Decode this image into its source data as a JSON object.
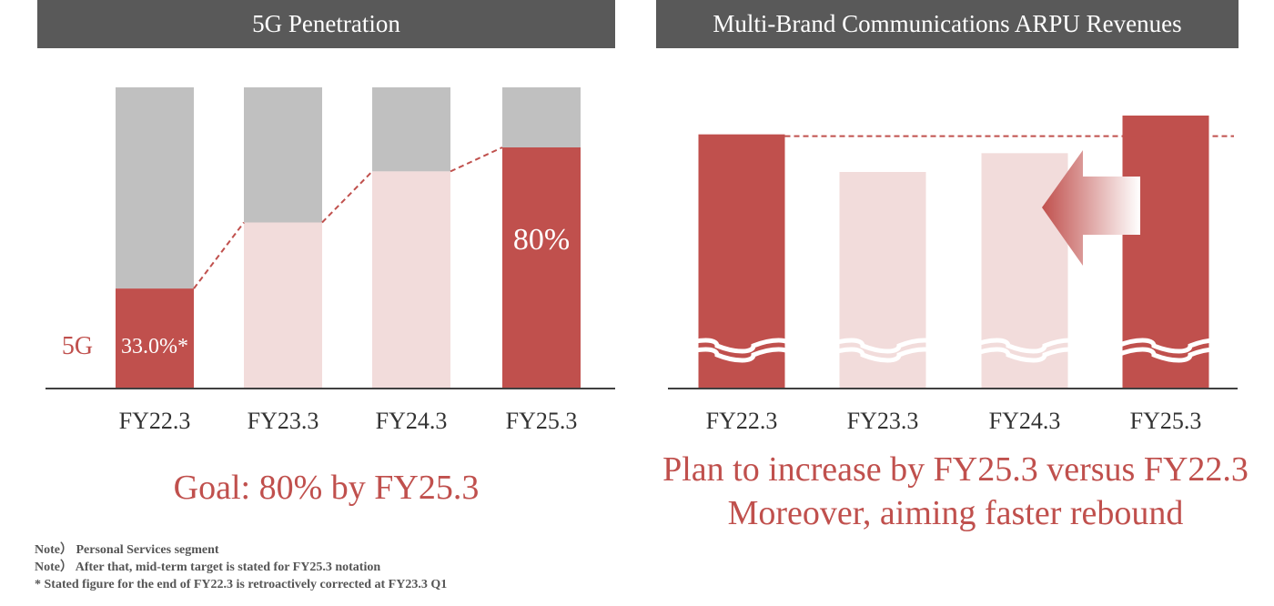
{
  "chart_data": [
    {
      "type": "bar",
      "title": "5G Penetration",
      "categories": [
        "FY22.3",
        "FY23.3",
        "FY24.3",
        "FY25.3"
      ],
      "series": [
        {
          "name": "5G",
          "values": [
            33.0,
            55,
            72,
            80
          ]
        }
      ],
      "total": 100,
      "ylim": [
        0,
        100
      ],
      "labels": [
        {
          "category": "FY22.3",
          "text": "33.0%*"
        },
        {
          "category": "FY25.3",
          "text": "80%"
        }
      ],
      "series_label": "5G",
      "highlighted": [
        "FY22.3",
        "FY25.3"
      ],
      "colors": {
        "highlight": "#c0504d",
        "projected": "#f2dcdb",
        "remainder": "#c0c0c0"
      },
      "caption": "Goal: 80% by FY25.3"
    },
    {
      "type": "bar",
      "title": "Multi-Brand Communications ARPU Revenues",
      "categories": [
        "FY22.3",
        "FY23.3",
        "FY24.3",
        "FY25.3"
      ],
      "values": [
        85,
        73,
        79,
        91
      ],
      "ylim": [
        0,
        100
      ],
      "broken_axis": true,
      "reference_line": "FY22.3 level",
      "highlighted": [
        "FY22.3",
        "FY25.3"
      ],
      "colors": {
        "highlight": "#c0504d",
        "projected": "#f2dcdb"
      },
      "caption_lines": [
        "Plan to increase by FY25.3 versus FY22.3",
        "Moreover, aiming faster rebound"
      ]
    }
  ],
  "notes": [
    "Note） Personal Services segment",
    "Note） After that, mid-term target is stated for FY25.3 notation",
    "* Stated figure for the end of FY22.3 is retroactively corrected at FY23.3 Q1"
  ]
}
